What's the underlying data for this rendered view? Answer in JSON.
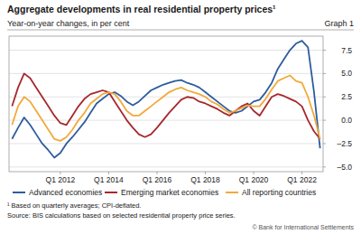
{
  "chart_data": {
    "type": "line",
    "title": "Aggregate developments in real residential property prices¹",
    "subtitle": "Year-on-year changes, in per cent",
    "annotations": [
      "Graph 1",
      "¹ Based on quarterly averages; CPI-deflated.",
      "Source: BIS calculations based on selected residential property price series.",
      "© Bank for International Settlements"
    ],
    "categories": [
      null,
      null,
      null,
      null,
      null,
      null,
      null,
      null,
      "Q1 2012",
      null,
      null,
      null,
      null,
      null,
      null,
      null,
      "Q1 2014",
      null,
      null,
      null,
      null,
      null,
      null,
      null,
      "Q1 2016",
      null,
      null,
      null,
      null,
      null,
      null,
      null,
      "Q1 2018",
      null,
      null,
      null,
      null,
      null,
      null,
      null,
      "Q1 2020",
      null,
      null,
      null,
      null,
      null,
      null,
      null,
      "Q1 2022",
      null,
      null,
      null
    ],
    "series": [
      {
        "name": "Advanced economies",
        "color": "#2e5c9e",
        "values": [
          -2.0,
          -0.8,
          0.3,
          -0.5,
          -1.5,
          -2.5,
          -3.2,
          -4.0,
          -3.5,
          -2.5,
          -1.8,
          -1.0,
          -0.2,
          0.8,
          1.8,
          2.3,
          2.8,
          3.0,
          2.6,
          2.0,
          1.6,
          2.0,
          2.6,
          3.2,
          3.5,
          3.8,
          4.0,
          4.2,
          4.3,
          4.0,
          3.8,
          3.5,
          3.0,
          2.5,
          2.0,
          1.5,
          1.0,
          0.8,
          1.0,
          1.5,
          2.0,
          2.2,
          3.0,
          4.0,
          5.5,
          6.5,
          7.5,
          8.2,
          8.5,
          7.8,
          3.0,
          -3.0
        ]
      },
      {
        "name": "Emerging market economies",
        "color": "#a7282d",
        "values": [
          1.5,
          3.5,
          5.0,
          4.5,
          3.5,
          2.5,
          1.5,
          0.5,
          -0.3,
          -0.5,
          0.5,
          1.5,
          2.3,
          2.8,
          3.0,
          3.2,
          3.0,
          2.0,
          1.0,
          0.0,
          -0.8,
          -1.5,
          -1.8,
          -1.5,
          -0.8,
          0.0,
          0.8,
          1.5,
          2.2,
          2.5,
          2.4,
          2.0,
          1.8,
          1.5,
          1.2,
          0.8,
          0.5,
          1.0,
          1.5,
          1.8,
          1.0,
          0.5,
          1.5,
          2.5,
          2.8,
          2.6,
          2.3,
          2.0,
          1.5,
          0.0,
          -1.2,
          -2.0
        ]
      },
      {
        "name": "All reporting countries",
        "color": "#f2a93b",
        "values": [
          -0.5,
          1.5,
          2.5,
          2.0,
          1.0,
          0.0,
          -1.0,
          -2.0,
          -2.2,
          -1.8,
          -1.0,
          0.0,
          0.8,
          1.8,
          2.3,
          2.8,
          3.0,
          2.8,
          2.0,
          1.0,
          0.5,
          0.5,
          1.0,
          1.5,
          2.0,
          2.5,
          3.0,
          3.3,
          3.5,
          3.2,
          3.0,
          2.8,
          2.5,
          2.0,
          1.7,
          1.2,
          0.8,
          1.0,
          1.3,
          1.6,
          1.5,
          1.5,
          2.3,
          3.3,
          4.2,
          4.5,
          4.8,
          4.2,
          4.0,
          2.5,
          0.5,
          -2.0
        ]
      }
    ],
    "ylim": [
      -5.5,
      9
    ],
    "yticks": [
      {
        "value": -5,
        "label": "–5.0"
      },
      {
        "value": -2.5,
        "label": "–2.5"
      },
      {
        "value": 0,
        "label": "0.0"
      },
      {
        "value": 2.5,
        "label": "2.5"
      },
      {
        "value": 5,
        "label": "5.0"
      },
      {
        "value": 7.5,
        "label": "7.5"
      }
    ],
    "grid": true,
    "legend": "bottom"
  }
}
